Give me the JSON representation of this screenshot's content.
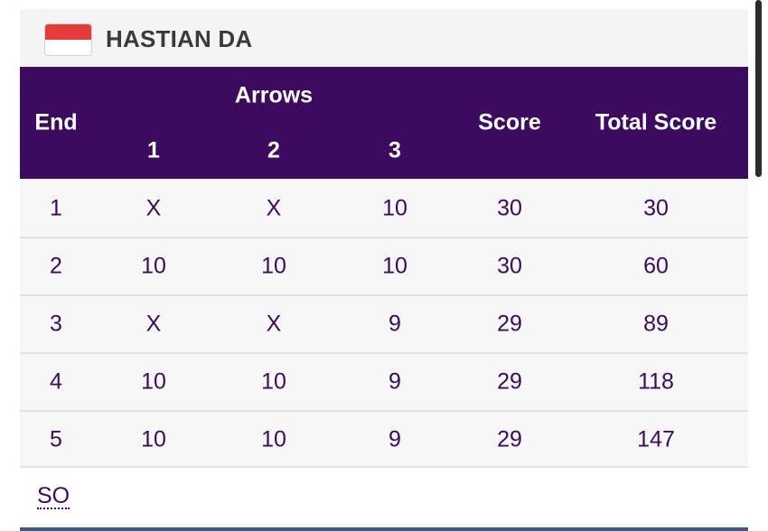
{
  "athlete": {
    "name": "HASTIAN DA",
    "flag_icon": "indonesia-flag-icon",
    "flag_colors": {
      "top": "#e63b3b",
      "bottom": "#ffffff"
    }
  },
  "colors": {
    "header_bg": "#3c0a5e",
    "text": "#3c0a5e"
  },
  "table": {
    "headers": {
      "end": "End",
      "arrows": "Arrows",
      "arrow_1": "1",
      "arrow_2": "2",
      "arrow_3": "3",
      "score": "Score",
      "total_score": "Total Score"
    },
    "rows": [
      {
        "end": "1",
        "a1": "X",
        "a2": "X",
        "a3": "10",
        "score": "30",
        "total": "30"
      },
      {
        "end": "2",
        "a1": "10",
        "a2": "10",
        "a3": "10",
        "score": "30",
        "total": "60"
      },
      {
        "end": "3",
        "a1": "X",
        "a2": "X",
        "a3": "9",
        "score": "29",
        "total": "89"
      },
      {
        "end": "4",
        "a1": "10",
        "a2": "10",
        "a3": "9",
        "score": "29",
        "total": "118"
      },
      {
        "end": "5",
        "a1": "10",
        "a2": "10",
        "a3": "9",
        "score": "29",
        "total": "147"
      }
    ],
    "shoot_off_label": "SO"
  }
}
